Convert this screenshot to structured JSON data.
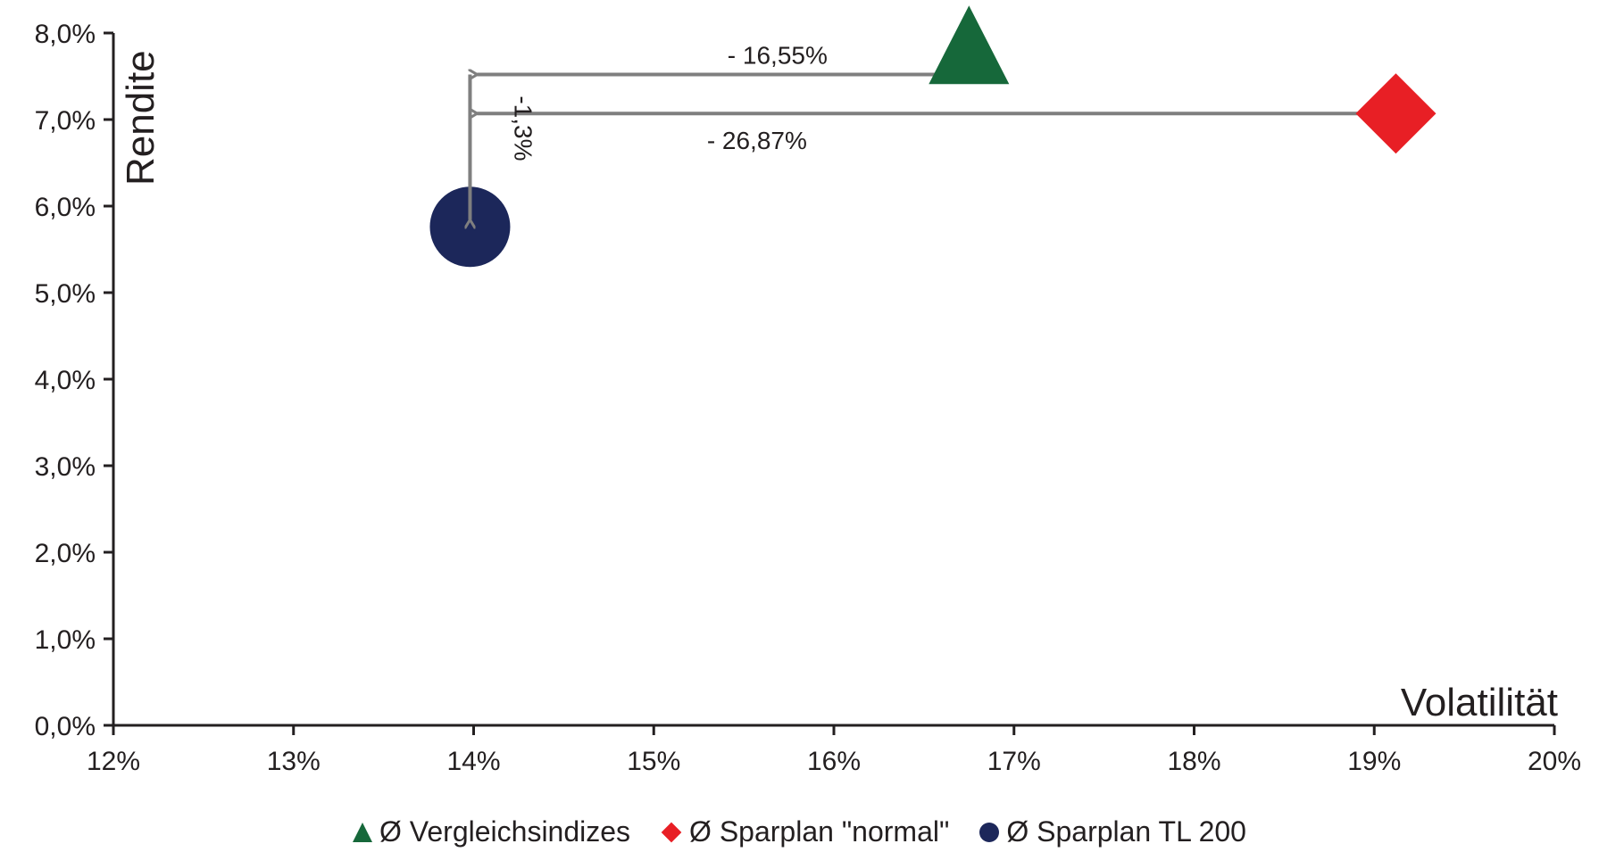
{
  "chart_data": {
    "type": "scatter",
    "xlabel": "Volatilität",
    "ylabel": "Rendite",
    "xlim": [
      12,
      20
    ],
    "ylim": [
      0,
      8
    ],
    "x_ticks": [
      "12%",
      "13%",
      "14%",
      "15%",
      "16%",
      "17%",
      "18%",
      "19%",
      "20%"
    ],
    "y_ticks": [
      "0,0%",
      "1,0%",
      "2,0%",
      "3,0%",
      "4,0%",
      "5,0%",
      "6,0%",
      "7,0%",
      "8,0%"
    ],
    "grid": false,
    "legend_position": "bottom",
    "series": [
      {
        "name": "Ø Vergleichsindizes",
        "marker": "triangle",
        "color": "#16683a",
        "x": 16.75,
        "y": 7.5
      },
      {
        "name": "Ø Sparplan \"normal\"",
        "marker": "diamond",
        "color": "#e81f25",
        "x": 19.12,
        "y": 7.07
      },
      {
        "name": "Ø Sparplan TL 200",
        "marker": "circle",
        "color": "#1c275a",
        "x": 13.98,
        "y": 5.76
      }
    ],
    "annotations": [
      {
        "text": "- 16,55%",
        "from": [
          16.7,
          7.52
        ],
        "to": [
          13.98,
          7.52
        ]
      },
      {
        "text": "- 26,87%",
        "from": [
          19.0,
          7.07
        ],
        "to": [
          13.98,
          7.07
        ]
      },
      {
        "text": "-1,3%",
        "from": [
          13.98,
          7.52
        ],
        "to": [
          13.98,
          5.76
        ]
      }
    ]
  }
}
